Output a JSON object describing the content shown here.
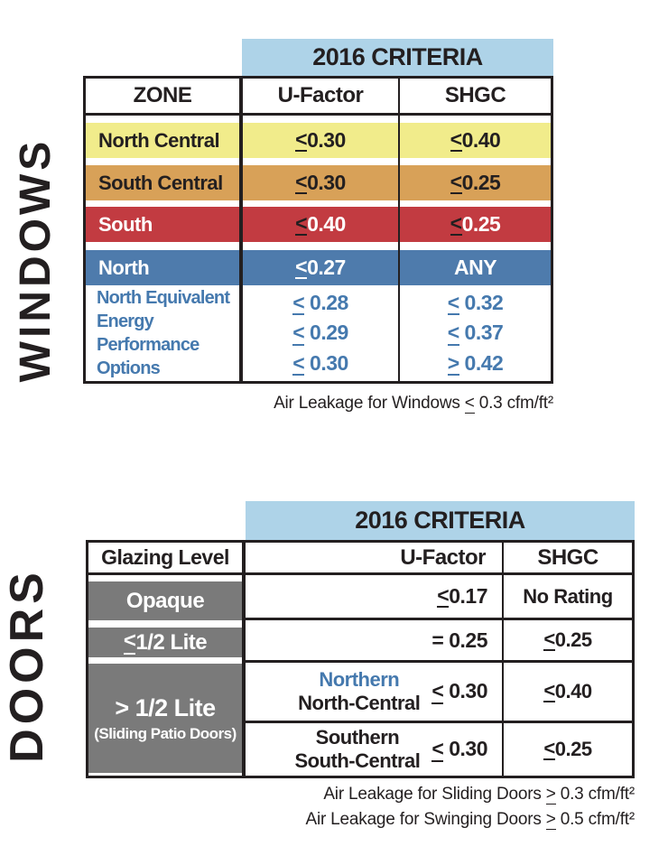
{
  "windows": {
    "section_label": "WINDOWS",
    "criteria_header": "2016 CRITERIA",
    "columns": {
      "zone": "ZONE",
      "u_factor": "U-Factor",
      "shgc": "SHGC"
    },
    "rows": [
      {
        "zone": "North Central",
        "u_factor": "≤ 0.30",
        "shgc": "≤ 0.40"
      },
      {
        "zone": "South Central",
        "u_factor": "≤ 0.30",
        "shgc": "≤ 0.25"
      },
      {
        "zone": "South",
        "u_factor": "≤ 0.40",
        "shgc": "≤ 0.25"
      },
      {
        "zone": "North",
        "u_factor": "≤ 0.27",
        "shgc": "ANY"
      }
    ],
    "equivalent_row": {
      "zone_lines": [
        "North Equivalent",
        "Energy",
        "Performance",
        "Options"
      ],
      "u_factor_options": [
        "≤ 0.28",
        "≤ 0.29",
        "≤ 0.30"
      ],
      "shgc_options": [
        "≤ 0.32",
        "≤ 0.37",
        "≥ 0.42"
      ]
    },
    "footnote": "Air Leakage for Windows ≤ 0.3 cfm/ft²"
  },
  "doors": {
    "section_label": "DOORS",
    "criteria_header": "2016 CRITERIA",
    "columns": {
      "glazing": "Glazing Level",
      "u_factor": "U-Factor",
      "shgc": "SHGC"
    },
    "rows": [
      {
        "glazing": "Opaque",
        "u_factor": "≤ 0.17",
        "shgc": "No Rating"
      },
      {
        "glazing": "≤ 1/2 Lite",
        "u_factor": "= 0.25",
        "shgc": "≤ 0.25"
      }
    ],
    "split_row": {
      "glazing": "> 1/2 Lite",
      "glazing_note": "(Sliding Patio Doors)",
      "sub_rows": [
        {
          "zone_primary": "Northern",
          "zone_secondary": "North-Central",
          "u_factor": "≤ 0.30",
          "shgc": "≤ 0.40"
        },
        {
          "zone_primary": "Southern",
          "zone_secondary": "South-Central",
          "u_factor": "≤ 0.30",
          "shgc": "≤ 0.25"
        }
      ]
    },
    "footnotes": [
      "Air Leakage for Sliding Doors ≥ 0.3 cfm/ft²",
      "Air Leakage for Swinging Doors ≥ 0.5 cfm/ft²"
    ]
  },
  "colors": {
    "criteria_band_bg": "#aed3e8",
    "north_central_bg": "#f1ec8b",
    "south_central_bg": "#d8a158",
    "south_bg": "#c23b41",
    "north_bg": "#4e7bac",
    "equivalent_text": "#4579ae",
    "doors_gray_bg": "#7a7a7a",
    "table_border": "#231f20"
  }
}
